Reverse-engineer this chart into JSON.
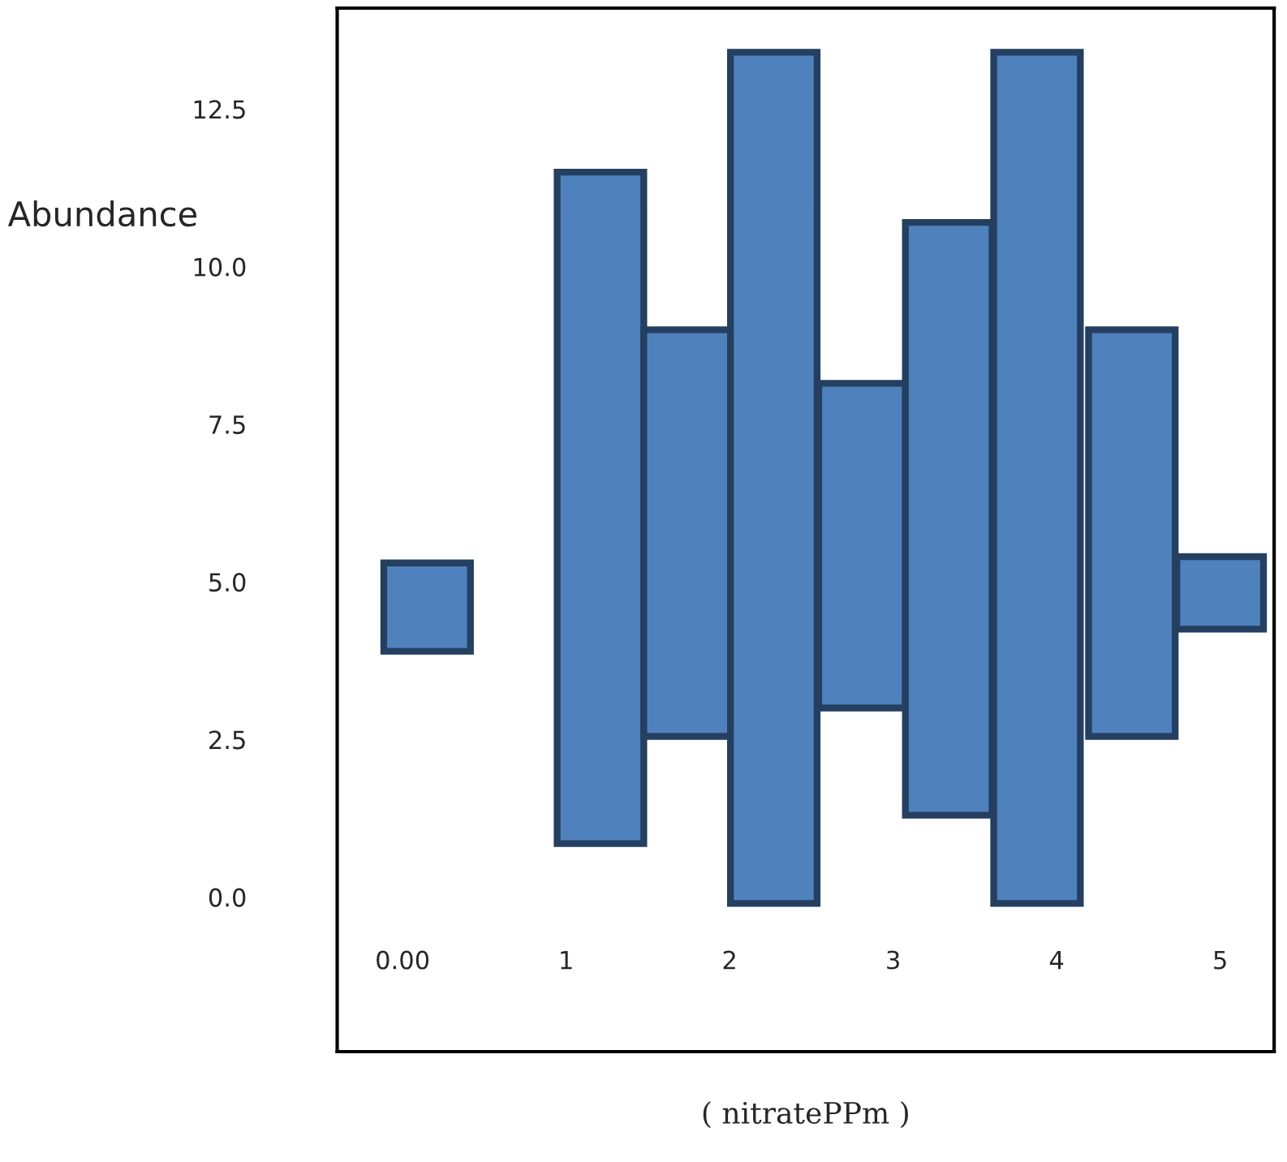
{
  "chart_data": {
    "type": "bar",
    "xlabel": "( nitratePPm )",
    "ylabel": "Abundance",
    "x": [
      0.15,
      1.21,
      1.74,
      2.27,
      2.81,
      3.34,
      3.88,
      4.46,
      5.0
    ],
    "base": [
      3.9,
      0.85,
      2.55,
      -0.1,
      3.0,
      1.3,
      -0.1,
      2.55,
      4.25
    ],
    "values": [
      1.4,
      10.65,
      6.45,
      13.5,
      5.15,
      9.4,
      13.5,
      6.45,
      1.15
    ],
    "color": "#4f81bd",
    "xlim": [
      -0.4,
      5.33
    ],
    "xticks": [
      {
        "value": 0,
        "label": "0.00"
      },
      1,
      2,
      3,
      4,
      5
    ],
    "ylim": [
      -2.45,
      14.1
    ],
    "yticks": [
      {
        "value": 0,
        "label": "0.0"
      },
      2.5,
      {
        "value": 5,
        "label": "5.0"
      },
      7.5,
      {
        "value": 10,
        "label": "10.0"
      },
      12.5
    ],
    "grid": false
  }
}
